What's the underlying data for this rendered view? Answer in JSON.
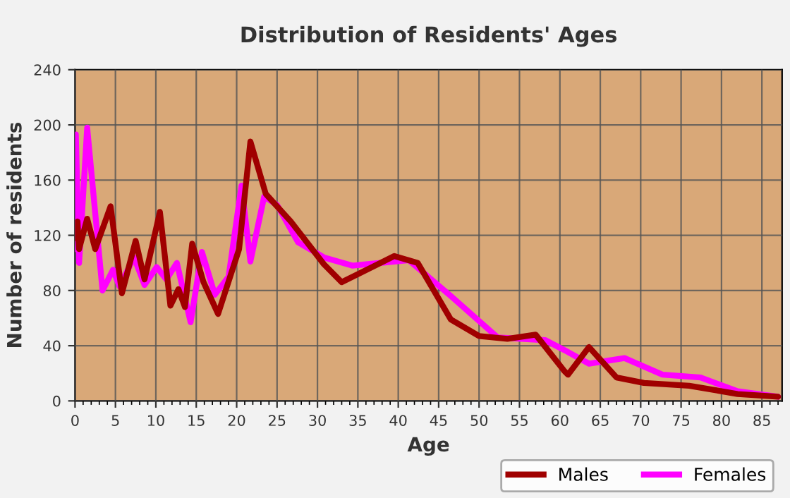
{
  "chart_data": {
    "type": "line",
    "title": "Distribution of Residents' Ages",
    "xlabel": "Age",
    "ylabel": "Number of residents",
    "xlim": [
      0,
      87.5
    ],
    "ylim": [
      0,
      240
    ],
    "xticks": [
      0,
      5,
      10,
      15,
      20,
      25,
      30,
      35,
      40,
      45,
      50,
      55,
      60,
      65,
      70,
      75,
      80,
      85
    ],
    "yticks": [
      0,
      40,
      80,
      120,
      160,
      200,
      240
    ],
    "grid": true,
    "legend": "bottom right",
    "marker": "none",
    "line_style": "solid",
    "series": [
      {
        "name": "Males",
        "color": "#a00000",
        "x": [
          0,
          0.3,
          0.5,
          1.5,
          2.5,
          4.4,
          5.8,
          7.5,
          8.6,
          10.5,
          11.8,
          12.8,
          13.6,
          14.5,
          15.9,
          17.7,
          20.3,
          21.7,
          23.6,
          26.7,
          30.8,
          33,
          39.5,
          42.4,
          46.5,
          50,
          53.5,
          57,
          60.5,
          61,
          63.6,
          67,
          70.4,
          76,
          82,
          87
        ],
        "values": [
          118,
          130,
          110,
          132,
          110,
          141,
          78,
          116,
          88,
          137,
          69,
          81,
          68,
          114,
          86,
          63,
          110,
          188,
          150,
          130,
          99,
          86,
          105,
          100,
          59,
          47,
          45,
          48,
          22,
          19,
          39,
          17,
          13,
          11,
          5,
          3
        ]
      },
      {
        "name": "Females",
        "color": "#ff00ff",
        "x": [
          0,
          0.1,
          0.5,
          1.5,
          3.4,
          4.7,
          5.5,
          7.3,
          8.6,
          10.1,
          11.3,
          12.6,
          14.3,
          15.7,
          17.3,
          19,
          20.6,
          21.7,
          23.4,
          25,
          27.6,
          30.8,
          34.3,
          41.3,
          46.5,
          52.3,
          58.2,
          60.5,
          63.6,
          68,
          72.7,
          77.4,
          82,
          87
        ],
        "values": [
          110,
          193,
          100,
          198,
          80,
          95,
          83,
          104,
          84,
          97,
          88,
          100,
          57,
          108,
          77,
          90,
          156,
          101,
          148,
          142,
          115,
          104,
          98,
          102,
          76,
          46,
          44,
          37,
          27,
          31,
          19,
          17,
          7,
          3
        ]
      }
    ]
  }
}
